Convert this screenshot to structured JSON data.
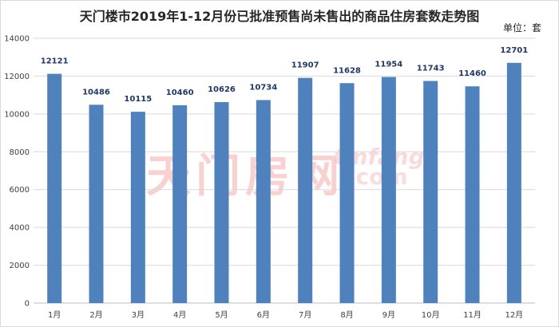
{
  "chart_data": {
    "type": "bar",
    "title": "天门楼市2019年1-12月份已批准预售尚未售出的商品住房套数走势图",
    "unit_label": "单位：套",
    "categories": [
      "1月",
      "2月",
      "3月",
      "4月",
      "5月",
      "6月",
      "7月",
      "8月",
      "9月",
      "10月",
      "11月",
      "12月"
    ],
    "values": [
      12121,
      10486,
      10115,
      10460,
      10626,
      10734,
      11907,
      11628,
      11954,
      11743,
      11460,
      12701
    ],
    "ylim": [
      0,
      14000
    ],
    "yticks": [
      0,
      2000,
      4000,
      6000,
      8000,
      10000,
      12000,
      14000
    ],
    "grid": true,
    "bar_color": "#4f81bd",
    "label_color": "#1f3864"
  },
  "watermark": {
    "logo_text": "天门房网",
    "domain_text": "tmfang",
    "domain_suffix": ".com"
  }
}
